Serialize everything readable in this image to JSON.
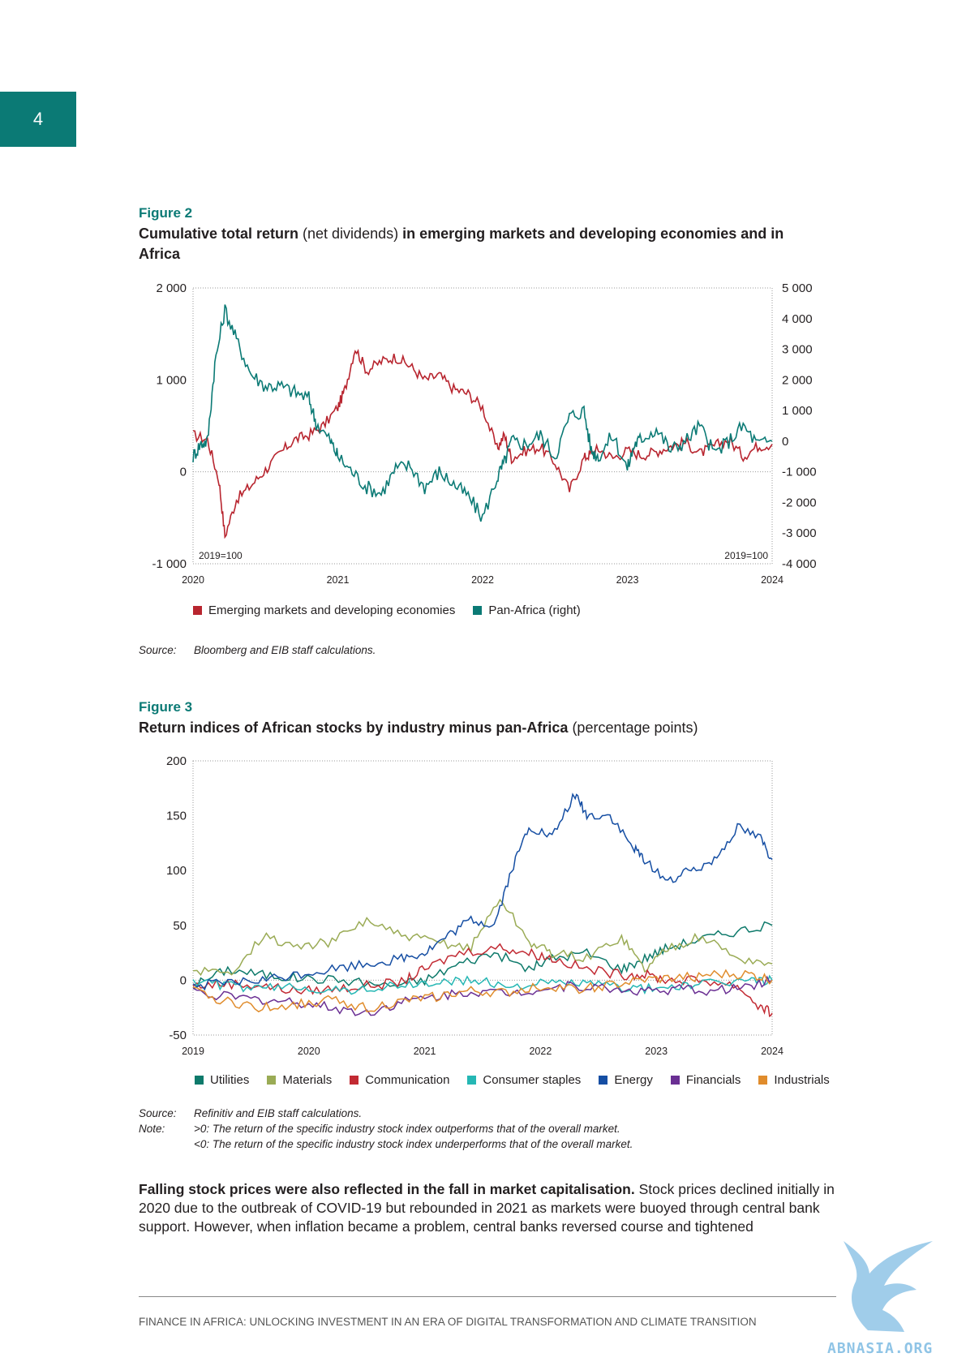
{
  "page_number": "4",
  "colors": {
    "teal": "#0b7a75",
    "emde": "#b8252f",
    "utilities": "#0e7a6b",
    "materials": "#9aab55",
    "communication": "#c22a33",
    "consumer_staples": "#25b7b4",
    "energy": "#154ea3",
    "financials": "#6a2f93",
    "industrials": "#e08c2c"
  },
  "figure2": {
    "label": "Figure 2",
    "title_bold_1": "Cumulative total return",
    "title_normal": " (net dividends) ",
    "title_bold_2": "in emerging markets and developing economies and in Africa",
    "source_key": "Source:",
    "source_text": "Bloomberg and EIB staff calculations.",
    "legend": [
      {
        "label": "Emerging markets and developing economies",
        "color": "#b8252f"
      },
      {
        "label": "Pan-Africa (right)",
        "color": "#0b7a75"
      }
    ]
  },
  "figure3": {
    "label": "Figure 3",
    "title_bold": "Return indices of African stocks by industry minus pan-Africa",
    "title_normal": " (percentage points)",
    "source_key": "Source:",
    "source_text": "Refinitiv and EIB staff calculations.",
    "note_key": "Note:",
    "note_line1": ">0: The return of the specific industry stock index outperforms that of the overall market.",
    "note_line2": "<0: The return of the specific industry stock index underperforms that of the overall market.",
    "legend": [
      {
        "label": "Utilities",
        "color": "#0e7a6b"
      },
      {
        "label": "Materials",
        "color": "#9aab55"
      },
      {
        "label": "Communication",
        "color": "#c22a33"
      },
      {
        "label": "Consumer staples",
        "color": "#25b7b4"
      },
      {
        "label": "Energy",
        "color": "#154ea3"
      },
      {
        "label": "Financials",
        "color": "#6a2f93"
      },
      {
        "label": "Industrials",
        "color": "#e08c2c"
      }
    ]
  },
  "body": {
    "lead_bold": "Falling stock prices were also reflected in the fall in market capitalisation.",
    "text": " Stock prices declined initially in 2020 due to the outbreak of COVID-19 but rebounded in 2021 as markets were buoyed through central bank support. However, when inflation became a problem, central banks reversed course and tightened"
  },
  "footer": "FINANCE IN AFRICA: UNLOCKING INVESTMENT IN AN ERA OF DIGITAL TRANSFORMATION AND CLIMATE TRANSITION",
  "watermark": "ABNASIA.ORG",
  "chart_data": [
    {
      "type": "line",
      "x_ticks": [
        "2020",
        "2021",
        "2022",
        "2023",
        "2024"
      ],
      "xlim": [
        2020,
        2024
      ],
      "y_left_ticks": [
        "-1 000",
        "0",
        "1 000",
        "2 000"
      ],
      "ylim_left": [
        -1000,
        2000
      ],
      "y_right_ticks": [
        "-4 000",
        "-3 000",
        "-2 000",
        "-1 000",
        "0",
        "1 000",
        "2 000",
        "3 000",
        "4 000",
        "5 000"
      ],
      "ylim_right": [
        -4000,
        5000
      ],
      "annotation_left": "2019=100",
      "annotation_right": "2019=100",
      "grid": false,
      "legend_position": "bottom",
      "series": [
        {
          "name": "Emerging markets and developing economies",
          "axis": "left",
          "color": "#b8252f",
          "x": [
            2020.0,
            2020.1,
            2020.18,
            2020.22,
            2020.3,
            2020.4,
            2020.5,
            2020.6,
            2020.7,
            2020.8,
            2020.9,
            2021.0,
            2021.05,
            2021.12,
            2021.2,
            2021.3,
            2021.4,
            2021.5,
            2021.6,
            2021.7,
            2021.8,
            2021.9,
            2022.0,
            2022.1,
            2022.15,
            2022.2,
            2022.3,
            2022.4,
            2022.5,
            2022.6,
            2022.7,
            2022.75,
            2022.8,
            2022.9,
            2023.0,
            2023.1,
            2023.2,
            2023.3,
            2023.4,
            2023.5,
            2023.6,
            2023.7,
            2023.8,
            2023.9,
            2024.0
          ],
          "y": [
            400,
            350,
            -100,
            -700,
            -300,
            -150,
            20,
            200,
            350,
            400,
            500,
            700,
            900,
            1350,
            1100,
            1200,
            1250,
            1150,
            1000,
            1050,
            900,
            850,
            700,
            250,
            400,
            150,
            230,
            270,
            100,
            -200,
            150,
            200,
            250,
            150,
            230,
            180,
            220,
            280,
            320,
            200,
            280,
            350,
            170,
            280,
            300
          ]
        },
        {
          "name": "Pan-Africa (right)",
          "axis": "right",
          "color": "#0b7a75",
          "x": [
            2020.0,
            2020.05,
            2020.1,
            2020.15,
            2020.22,
            2020.3,
            2020.4,
            2020.5,
            2020.6,
            2020.7,
            2020.8,
            2020.85,
            2020.95,
            2021.0,
            2021.1,
            2021.2,
            2021.3,
            2021.4,
            2021.5,
            2021.6,
            2021.7,
            2021.8,
            2021.9,
            2022.0,
            2022.1,
            2022.15,
            2022.2,
            2022.3,
            2022.4,
            2022.5,
            2022.6,
            2022.7,
            2022.75,
            2022.8,
            2022.9,
            2023.0,
            2023.05,
            2023.1,
            2023.2,
            2023.3,
            2023.4,
            2023.5,
            2023.6,
            2023.7,
            2023.8,
            2023.9,
            2024.0
          ],
          "y": [
            -500,
            -100,
            0,
            2500,
            4300,
            3300,
            2200,
            1800,
            1800,
            1600,
            1400,
            600,
            0,
            -500,
            -1000,
            -1500,
            -1700,
            -900,
            -800,
            -1500,
            -1000,
            -1400,
            -1800,
            -2500,
            -1200,
            -700,
            0,
            -100,
            200,
            -500,
            800,
            1000,
            -300,
            -500,
            200,
            -900,
            -100,
            100,
            400,
            -300,
            0,
            500,
            -400,
            0,
            500,
            -100,
            0
          ]
        }
      ]
    },
    {
      "type": "line",
      "x_ticks": [
        "2019",
        "2020",
        "2021",
        "2022",
        "2023",
        "2024"
      ],
      "xlim": [
        2019,
        2024
      ],
      "y_ticks": [
        "-50",
        "0",
        "50",
        "100",
        "150",
        "200"
      ],
      "ylim": [
        -50,
        200
      ],
      "grid": false,
      "legend_position": "bottom",
      "series": [
        {
          "name": "Utilities",
          "color": "#0e7a6b",
          "x": [
            2019.0,
            2019.3,
            2019.6,
            2019.9,
            2020.3,
            2020.7,
            2021.0,
            2021.3,
            2021.6,
            2021.9,
            2022.1,
            2022.4,
            2022.7,
            2022.9,
            2023.1,
            2023.4,
            2023.7,
            2024.0
          ],
          "y": [
            -5,
            10,
            5,
            2,
            0,
            -5,
            0,
            15,
            25,
            10,
            20,
            25,
            10,
            20,
            30,
            38,
            45,
            50
          ]
        },
        {
          "name": "Materials",
          "color": "#9aab55",
          "x": [
            2019.0,
            2019.3,
            2019.6,
            2019.9,
            2020.2,
            2020.5,
            2020.8,
            2021.1,
            2021.4,
            2021.65,
            2021.9,
            2022.1,
            2022.4,
            2022.7,
            2022.9,
            2023.1,
            2023.4,
            2023.7,
            2024.0
          ],
          "y": [
            10,
            5,
            40,
            30,
            35,
            55,
            40,
            35,
            30,
            75,
            35,
            25,
            20,
            40,
            10,
            30,
            40,
            20,
            15
          ]
        },
        {
          "name": "Communication",
          "color": "#c22a33",
          "x": [
            2019.0,
            2019.3,
            2019.6,
            2019.9,
            2020.2,
            2020.5,
            2020.8,
            2021.0,
            2021.3,
            2021.65,
            2021.9,
            2022.1,
            2022.4,
            2022.7,
            2022.9,
            2023.1,
            2023.4,
            2023.7,
            2023.9,
            2024.0
          ],
          "y": [
            -5,
            -3,
            -5,
            -10,
            -8,
            -5,
            -2,
            10,
            25,
            30,
            25,
            20,
            10,
            5,
            5,
            0,
            0,
            -5,
            -25,
            -30
          ]
        },
        {
          "name": "Consumer staples",
          "color": "#25b7b4",
          "x": [
            2019.0,
            2019.3,
            2019.6,
            2019.9,
            2020.2,
            2020.5,
            2020.8,
            2021.1,
            2021.4,
            2021.7,
            2022.0,
            2022.3,
            2022.6,
            2022.9,
            2023.2,
            2023.5,
            2023.8,
            2024.0
          ],
          "y": [
            0,
            -5,
            -8,
            -5,
            -10,
            -8,
            -5,
            -2,
            0,
            -5,
            -3,
            -2,
            -5,
            -8,
            -5,
            -3,
            0,
            0
          ]
        },
        {
          "name": "Energy",
          "color": "#154ea3",
          "x": [
            2019.0,
            2019.3,
            2019.6,
            2019.9,
            2020.2,
            2020.5,
            2020.8,
            2021.0,
            2021.2,
            2021.4,
            2021.6,
            2021.75,
            2021.9,
            2022.1,
            2022.3,
            2022.4,
            2022.6,
            2022.8,
            2022.9,
            2023.1,
            2023.3,
            2023.5,
            2023.7,
            2023.9,
            2024.0
          ],
          "y": [
            -5,
            -3,
            0,
            5,
            10,
            15,
            20,
            25,
            40,
            55,
            50,
            100,
            140,
            130,
            170,
            150,
            150,
            120,
            110,
            90,
            100,
            110,
            140,
            130,
            110
          ]
        },
        {
          "name": "Financials",
          "color": "#6a2f93",
          "x": [
            2019.0,
            2019.3,
            2019.6,
            2019.9,
            2020.2,
            2020.5,
            2020.8,
            2021.1,
            2021.4,
            2021.7,
            2022.0,
            2022.3,
            2022.6,
            2022.9,
            2023.2,
            2023.5,
            2023.8,
            2024.0
          ],
          "y": [
            -10,
            -15,
            -18,
            -20,
            -25,
            -30,
            -20,
            -15,
            -10,
            -12,
            -8,
            -5,
            -8,
            -10,
            -8,
            -10,
            -5,
            0
          ]
        },
        {
          "name": "Industrials",
          "color": "#e08c2c",
          "x": [
            2019.0,
            2019.3,
            2019.6,
            2019.9,
            2020.2,
            2020.5,
            2020.8,
            2021.1,
            2021.4,
            2021.7,
            2022.0,
            2022.3,
            2022.6,
            2022.9,
            2023.2,
            2023.5,
            2023.8,
            2024.0
          ],
          "y": [
            -10,
            -20,
            -25,
            -22,
            -18,
            -25,
            -20,
            -15,
            -10,
            -12,
            -5,
            -8,
            -5,
            0,
            2,
            5,
            5,
            0
          ]
        }
      ]
    }
  ]
}
